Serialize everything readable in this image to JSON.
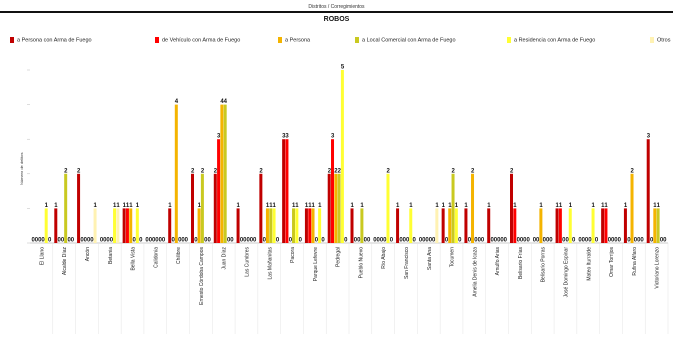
{
  "header": {
    "subtitle": "Distritos / Corregimientos"
  },
  "chart_data": {
    "type": "bar",
    "title": "ROBOS",
    "xlabel": "",
    "ylabel": "Número de delitos",
    "ylim": [
      0,
      5
    ],
    "grid": false,
    "legend_position": "top",
    "categories": [
      "El Llano",
      "Alcalde Díaz",
      "Ancón",
      "Betania",
      "Bella Vista",
      "Calidonia",
      "Chilibre",
      "Ernesto Córdoba Campos",
      "Juan Díaz",
      "Las Cumbres",
      "Las Mañanitas",
      "Pacora",
      "Parque Lefevre",
      "Pedregal",
      "Pueblo Nuevo",
      "Río Abajo",
      "San Francisco",
      "Santa Ana",
      "Tocumen",
      "Amelia Denis de Icaza",
      "Arnulfo Arias",
      "Belisario Frías",
      "Belisario Porras",
      "José Domingo Espinar",
      "Mateo Iturralde",
      "Omar Torrijos",
      "Rufina Alfaro",
      "Victoriano Lorenzo"
    ],
    "series": [
      {
        "name": "a Persona con Arma de Fuego",
        "color": "#c00000",
        "values": [
          0,
          1,
          2,
          0,
          1,
          0,
          1,
          2,
          2,
          1,
          2,
          3,
          1,
          2,
          1,
          0,
          1,
          0,
          1,
          1,
          1,
          2,
          0,
          1,
          0,
          1,
          1,
          3
        ]
      },
      {
        "name": "de Vehículo con Arma de Fuego",
        "color": "#ff0000",
        "values": [
          0,
          0,
          0,
          0,
          1,
          0,
          0,
          0,
          3,
          0,
          0,
          3,
          1,
          3,
          0,
          0,
          0,
          0,
          0,
          0,
          0,
          1,
          0,
          1,
          0,
          1,
          0,
          0
        ]
      },
      {
        "name": "a Persona",
        "color": "#f4b400",
        "values": [
          0,
          0,
          0,
          0,
          1,
          0,
          4,
          1,
          4,
          0,
          1,
          0,
          1,
          2,
          0,
          0,
          0,
          0,
          1,
          2,
          0,
          0,
          1,
          0,
          0,
          0,
          2,
          1
        ]
      },
      {
        "name": "a Local Comercial con Arma de Fuego",
        "color": "#c9c920",
        "values": [
          0,
          2,
          0,
          0,
          0,
          0,
          0,
          2,
          4,
          0,
          1,
          1,
          0,
          2,
          1,
          0,
          0,
          0,
          2,
          0,
          0,
          0,
          0,
          0,
          0,
          0,
          0,
          1
        ]
      },
      {
        "name": "a Residencia con Arma de Fuego",
        "color": "#ffff33",
        "values": [
          1,
          0,
          0,
          1,
          1,
          0,
          0,
          0,
          0,
          0,
          1,
          1,
          1,
          5,
          0,
          2,
          1,
          0,
          1,
          0,
          0,
          0,
          0,
          1,
          1,
          0,
          0,
          0
        ]
      },
      {
        "name": "Otros",
        "color": "#fff2b3",
        "values": [
          0,
          0,
          1,
          1,
          0,
          0,
          0,
          0,
          0,
          0,
          0,
          0,
          0,
          0,
          0,
          0,
          0,
          1,
          0,
          0,
          0,
          0,
          0,
          0,
          0,
          0,
          0,
          0
        ]
      }
    ]
  }
}
